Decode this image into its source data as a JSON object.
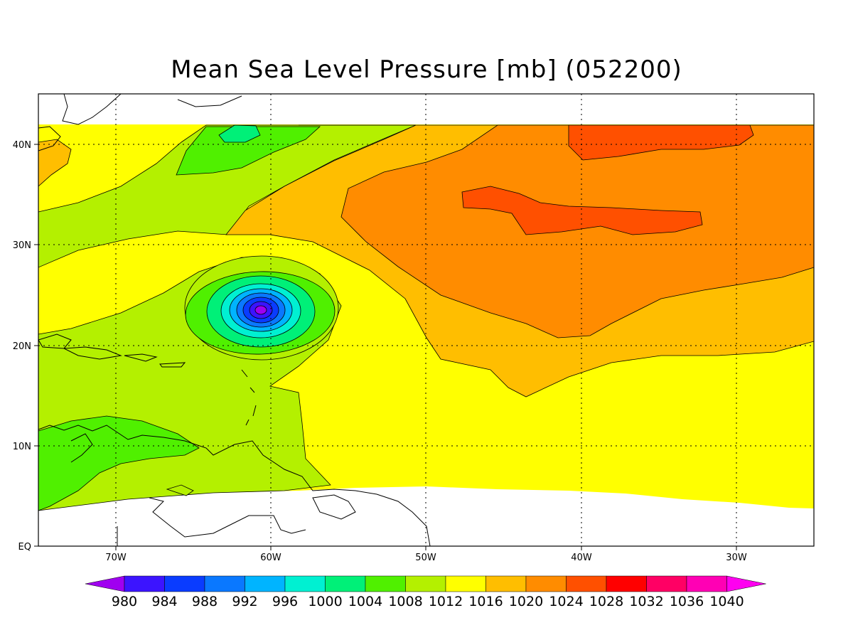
{
  "title": "Mean Sea Level Pressure [mb] (052200)",
  "map": {
    "lon_range": [
      -75,
      -25
    ],
    "lat_range": [
      0,
      45
    ],
    "data_lat_top": 42,
    "lon_ticks": [
      "70W",
      "60W",
      "50W",
      "40W",
      "30W"
    ],
    "lat_ticks": [
      "EQ",
      "10N",
      "20N",
      "30N",
      "40N"
    ],
    "grid": "dotted",
    "low_center": {
      "lon": -60.5,
      "lat": 23.5,
      "min_mb": 980
    }
  },
  "colorbar": {
    "levels": [
      "980",
      "984",
      "988",
      "992",
      "996",
      "1000",
      "1004",
      "1008",
      "1012",
      "1016",
      "1020",
      "1024",
      "1028",
      "1032",
      "1036",
      "1040"
    ],
    "colors": [
      "#a000f0",
      "#3c14ff",
      "#0a3cff",
      "#0a78ff",
      "#00b4ff",
      "#00f0d2",
      "#00f078",
      "#50f000",
      "#b4f000",
      "#ffff00",
      "#ffbe00",
      "#ff8c00",
      "#ff5000",
      "#ff0000",
      "#ff0064",
      "#ff00b4",
      "#ff00f0"
    ]
  }
}
